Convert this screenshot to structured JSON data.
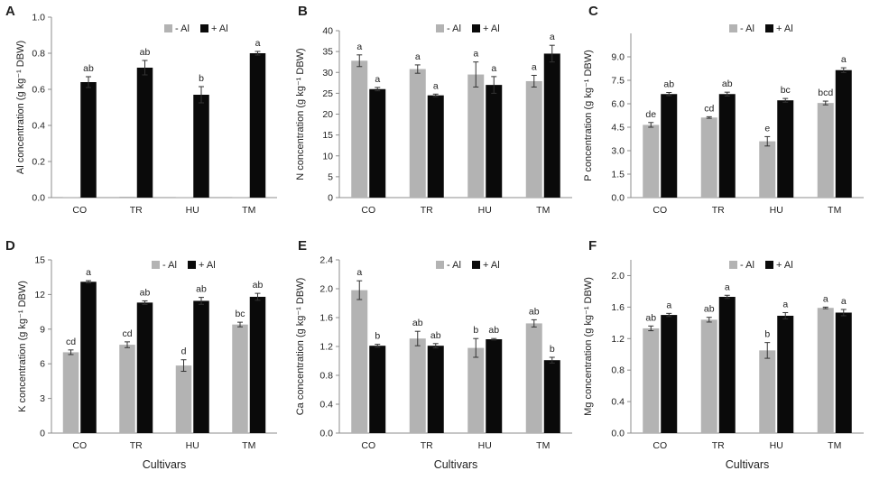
{
  "figure": {
    "xlabel": "Cultivars"
  },
  "legend": {
    "minus": "- Al",
    "plus": "+ Al"
  },
  "colors": {
    "minus_al": "#b3b3b3",
    "plus_al": "#0a0a0a",
    "axis": "#8c8c8c",
    "error_bar": "#333333"
  },
  "chart_data": [
    {
      "panel": "A",
      "type": "bar",
      "ylabel": "Al concentration (g kg⁻¹ DBW)",
      "categories": [
        "CO",
        "TR",
        "HU",
        "TM"
      ],
      "ylim": [
        0,
        1.0
      ],
      "yticks": [
        "0.0",
        "0.2",
        "0.4",
        "0.6",
        "0.8",
        "1.0"
      ],
      "series": [
        {
          "name": "- Al",
          "values": [
            0.0,
            0.005,
            0.003,
            0.003
          ],
          "errors": [
            0,
            0,
            0,
            0
          ],
          "labels": [
            "",
            "",
            "",
            ""
          ]
        },
        {
          "name": "+ Al",
          "values": [
            0.64,
            0.72,
            0.57,
            0.8
          ],
          "errors": [
            0.03,
            0.04,
            0.045,
            0.01
          ],
          "labels": [
            "ab",
            "ab",
            "b",
            "a"
          ]
        }
      ]
    },
    {
      "panel": "B",
      "type": "bar",
      "ylabel": "N concentration (g kg⁻¹ DBW)",
      "categories": [
        "CO",
        "TR",
        "HU",
        "TM"
      ],
      "ylim": [
        0,
        40
      ],
      "yticks": [
        "0",
        "5",
        "10",
        "15",
        "20",
        "25",
        "30",
        "35",
        "40"
      ],
      "series": [
        {
          "name": "- Al",
          "values": [
            32.8,
            30.8,
            29.5,
            27.9
          ],
          "errors": [
            1.4,
            1.0,
            3.0,
            1.4
          ],
          "labels": [
            "a",
            "a",
            "a",
            "a"
          ]
        },
        {
          "name": "+ Al",
          "values": [
            26.0,
            24.5,
            27.0,
            34.5
          ],
          "errors": [
            0.4,
            0.3,
            2.0,
            2.0
          ],
          "labels": [
            "a",
            "a",
            "a",
            "a"
          ]
        }
      ]
    },
    {
      "panel": "C",
      "type": "bar",
      "ylabel": "P concentration (g kg⁻¹ DBW)",
      "categories": [
        "CO",
        "TR",
        "HU",
        "TM"
      ],
      "ylim": [
        0,
        10.5
      ],
      "yticks": [
        "0.0",
        "1.5",
        "3.0",
        "4.5",
        "6.0",
        "7.5",
        "9.0"
      ],
      "series": [
        {
          "name": "- Al",
          "values": [
            4.65,
            5.12,
            3.6,
            6.05
          ],
          "errors": [
            0.15,
            0.05,
            0.3,
            0.12
          ],
          "labels": [
            "de",
            "cd",
            "e",
            "bcd"
          ]
        },
        {
          "name": "+ Al",
          "values": [
            6.62,
            6.62,
            6.22,
            8.15
          ],
          "errors": [
            0.1,
            0.12,
            0.12,
            0.15
          ],
          "labels": [
            "ab",
            "ab",
            "bc",
            "a"
          ]
        }
      ]
    },
    {
      "panel": "D",
      "type": "bar",
      "ylabel": "K concentration (g kg⁻¹ DBW)",
      "categories": [
        "CO",
        "TR",
        "HU",
        "TM"
      ],
      "ylim": [
        0,
        15
      ],
      "yticks": [
        "0",
        "3",
        "6",
        "9",
        "12",
        "15"
      ],
      "series": [
        {
          "name": "- Al",
          "values": [
            7.0,
            7.65,
            5.85,
            9.4
          ],
          "errors": [
            0.2,
            0.25,
            0.5,
            0.2
          ],
          "labels": [
            "cd",
            "cd",
            "d",
            "bc"
          ]
        },
        {
          "name": "+ Al",
          "values": [
            13.1,
            11.3,
            11.45,
            11.8
          ],
          "errors": [
            0.1,
            0.15,
            0.3,
            0.3
          ],
          "labels": [
            "a",
            "ab",
            "ab",
            "ab"
          ]
        }
      ]
    },
    {
      "panel": "E",
      "type": "bar",
      "ylabel": "Ca concentration (g kg⁻¹ DBW)",
      "categories": [
        "CO",
        "TR",
        "HU",
        "TM"
      ],
      "ylim": [
        0,
        2.4
      ],
      "yticks": [
        "0.0",
        "0.4",
        "0.8",
        "1.2",
        "1.6",
        "2.0",
        "2.4"
      ],
      "series": [
        {
          "name": "- Al",
          "values": [
            1.98,
            1.31,
            1.18,
            1.52
          ],
          "errors": [
            0.13,
            0.1,
            0.13,
            0.05
          ],
          "labels": [
            "a",
            "ab",
            "b",
            "ab"
          ]
        },
        {
          "name": "+ Al",
          "values": [
            1.21,
            1.21,
            1.3,
            1.01
          ],
          "errors": [
            0.02,
            0.03,
            0.01,
            0.04
          ],
          "labels": [
            "b",
            "ab",
            "ab",
            "b"
          ]
        }
      ]
    },
    {
      "panel": "F",
      "type": "bar",
      "ylabel": "Mg concentration (g kg⁻¹ DBW)",
      "categories": [
        "CO",
        "TR",
        "HU",
        "TM"
      ],
      "ylim": [
        0,
        2.2
      ],
      "yticks": [
        "0.0",
        "0.4",
        "0.8",
        "1.2",
        "1.6",
        "2.0"
      ],
      "series": [
        {
          "name": "- Al",
          "values": [
            1.33,
            1.44,
            1.05,
            1.59
          ],
          "errors": [
            0.03,
            0.03,
            0.1,
            0.01
          ],
          "labels": [
            "ab",
            "ab",
            "b",
            "a"
          ]
        },
        {
          "name": "+ Al",
          "values": [
            1.5,
            1.73,
            1.49,
            1.53
          ],
          "errors": [
            0.02,
            0.02,
            0.04,
            0.04
          ],
          "labels": [
            "a",
            "a",
            "a",
            "a"
          ]
        }
      ]
    }
  ]
}
